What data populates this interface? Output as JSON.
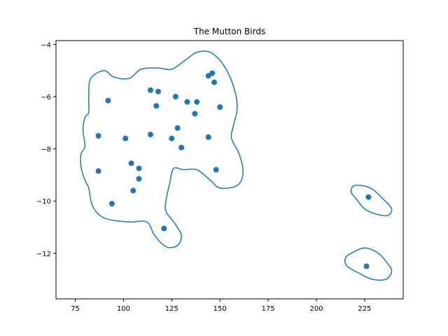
{
  "chart_data": {
    "type": "scatter",
    "title": "The Mutton Birds",
    "xlabel": "",
    "ylabel": "",
    "xlim": [
      65,
      245
    ],
    "ylim": [
      -13.75,
      -3.85
    ],
    "xticks": [
      75,
      100,
      125,
      150,
      175,
      200,
      225
    ],
    "yticks": [
      -12,
      -10,
      -8,
      -6,
      -4
    ],
    "grid": false,
    "colors": {
      "series": "#1f77b4",
      "axes": "#000000",
      "background": "#ffffff"
    },
    "points": [
      {
        "x": 144,
        "y": -5.2
      },
      {
        "x": 146,
        "y": -5.1
      },
      {
        "x": 147,
        "y": -5.45
      },
      {
        "x": 114,
        "y": -5.75
      },
      {
        "x": 118,
        "y": -5.8
      },
      {
        "x": 92,
        "y": -6.15
      },
      {
        "x": 127,
        "y": -6.0
      },
      {
        "x": 133,
        "y": -6.2
      },
      {
        "x": 138,
        "y": -6.2
      },
      {
        "x": 117,
        "y": -6.35
      },
      {
        "x": 150,
        "y": -6.4
      },
      {
        "x": 137,
        "y": -6.65
      },
      {
        "x": 128,
        "y": -7.2
      },
      {
        "x": 87,
        "y": -7.5
      },
      {
        "x": 114,
        "y": -7.45
      },
      {
        "x": 101,
        "y": -7.6
      },
      {
        "x": 125,
        "y": -7.6
      },
      {
        "x": 144,
        "y": -7.55
      },
      {
        "x": 130,
        "y": -7.95
      },
      {
        "x": 104,
        "y": -8.55
      },
      {
        "x": 108,
        "y": -8.75
      },
      {
        "x": 87,
        "y": -8.85
      },
      {
        "x": 148,
        "y": -8.8
      },
      {
        "x": 108,
        "y": -9.15
      },
      {
        "x": 105,
        "y": -9.6
      },
      {
        "x": 94,
        "y": -10.1
      },
      {
        "x": 121,
        "y": -11.05
      },
      {
        "x": 227,
        "y": -9.85
      },
      {
        "x": 226,
        "y": -12.5
      }
    ],
    "contours": [
      [
        [
          82,
          -6.0
        ],
        [
          83,
          -5.3
        ],
        [
          90,
          -5.0
        ],
        [
          95,
          -5.25
        ],
        [
          103,
          -5.3
        ],
        [
          109,
          -4.95
        ],
        [
          118,
          -4.9
        ],
        [
          125,
          -4.95
        ],
        [
          132,
          -4.6
        ],
        [
          138,
          -4.3
        ],
        [
          145,
          -4.3
        ],
        [
          152,
          -4.8
        ],
        [
          157,
          -5.6
        ],
        [
          159,
          -6.4
        ],
        [
          157,
          -7.1
        ],
        [
          156,
          -7.6
        ],
        [
          160,
          -8.2
        ],
        [
          162,
          -8.9
        ],
        [
          159,
          -9.4
        ],
        [
          150,
          -9.5
        ],
        [
          145,
          -9.2
        ],
        [
          138,
          -8.8
        ],
        [
          131,
          -8.8
        ],
        [
          126,
          -8.75
        ],
        [
          124,
          -9.3
        ],
        [
          122,
          -10.0
        ],
        [
          122,
          -10.4
        ],
        [
          126,
          -10.8
        ],
        [
          130,
          -11.3
        ],
        [
          128,
          -11.7
        ],
        [
          122,
          -11.75
        ],
        [
          116,
          -11.3
        ],
        [
          112,
          -10.8
        ],
        [
          102,
          -10.8
        ],
        [
          90,
          -10.65
        ],
        [
          84,
          -10.2
        ],
        [
          82,
          -9.5
        ],
        [
          80,
          -9.2
        ],
        [
          78,
          -8.7
        ],
        [
          78,
          -8.2
        ],
        [
          80,
          -7.9
        ],
        [
          79,
          -7.3
        ],
        [
          80,
          -6.8
        ],
        [
          82,
          -6.6
        ]
      ],
      [
        [
          220,
          -9.4
        ],
        [
          228,
          -9.5
        ],
        [
          235,
          -9.95
        ],
        [
          239,
          -10.3
        ],
        [
          237,
          -10.55
        ],
        [
          231,
          -10.5
        ],
        [
          225,
          -10.3
        ],
        [
          221,
          -9.95
        ],
        [
          218,
          -9.65
        ]
      ],
      [
        [
          218,
          -12.0
        ],
        [
          225,
          -11.8
        ],
        [
          232,
          -12.0
        ],
        [
          237,
          -12.4
        ],
        [
          239,
          -12.7
        ],
        [
          236,
          -13.0
        ],
        [
          229,
          -13.0
        ],
        [
          223,
          -12.8
        ],
        [
          216,
          -12.5
        ],
        [
          215,
          -12.2
        ]
      ]
    ]
  }
}
